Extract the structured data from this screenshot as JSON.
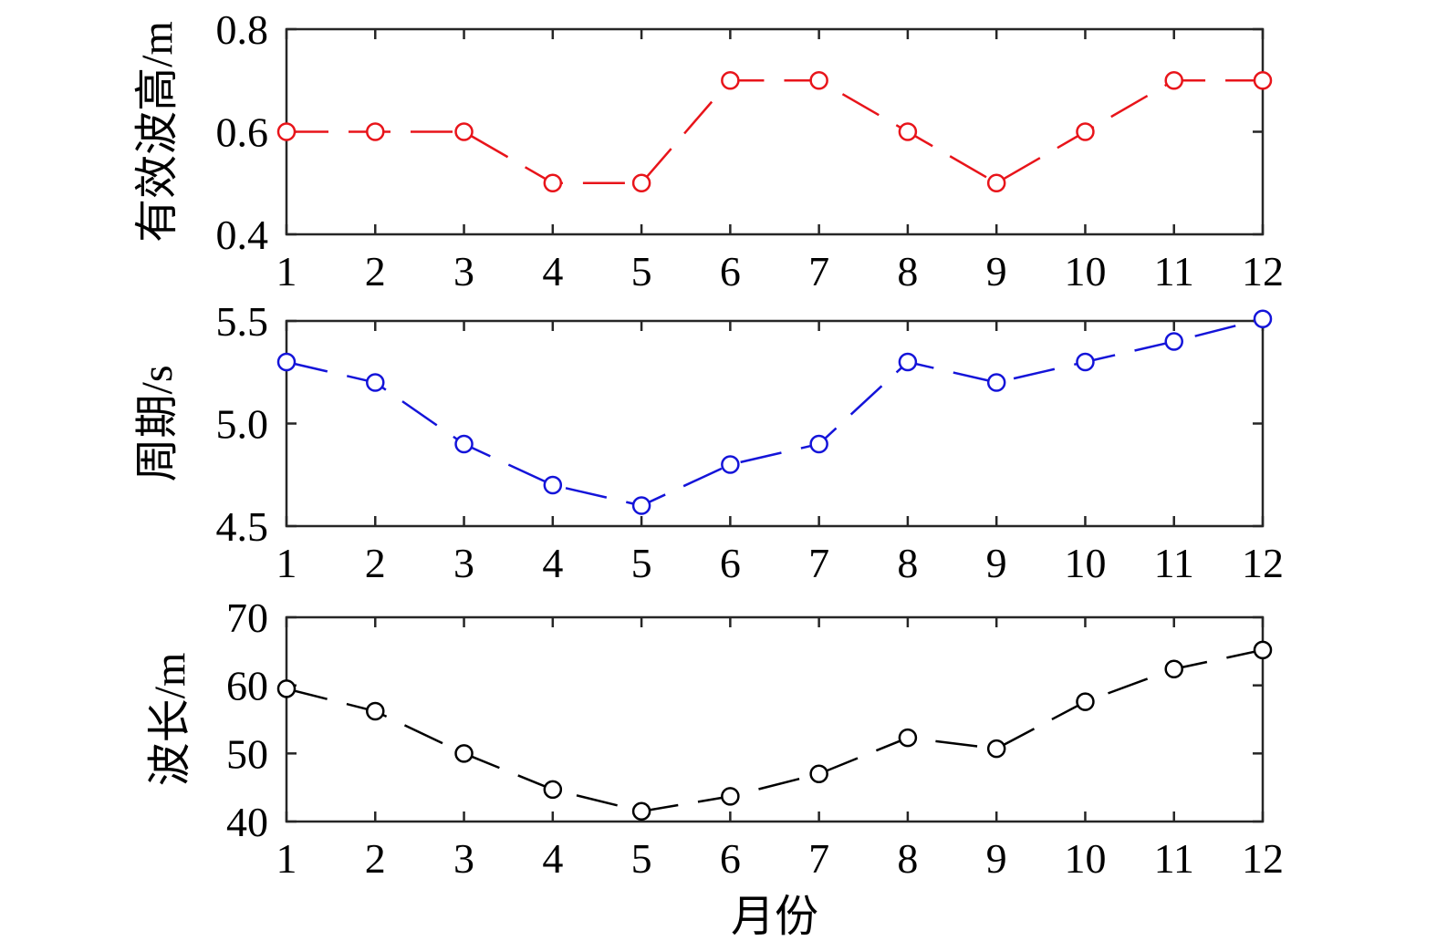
{
  "chart_data": [
    {
      "type": "line",
      "ylabel": "有效波高/m",
      "xlabel": "",
      "color": "#e8141a",
      "ylim": [
        0.4,
        0.8
      ],
      "yticks": [
        0.4,
        0.6,
        0.8
      ],
      "yticklabels": [
        "0.4",
        "0.6",
        "0.8"
      ],
      "x": [
        1,
        2,
        3,
        4,
        5,
        6,
        7,
        8,
        9,
        10,
        11,
        12
      ],
      "xticklabels": [
        "1",
        "2",
        "3",
        "4",
        "5",
        "6",
        "7",
        "8",
        "9",
        "10",
        "11",
        "12"
      ],
      "values": [
        0.6,
        0.6,
        0.6,
        0.5,
        0.5,
        0.7,
        0.7,
        0.6,
        0.5,
        0.6,
        0.7,
        0.7
      ],
      "marker": "circle",
      "line_style": "dashed"
    },
    {
      "type": "line",
      "ylabel": "周期/s",
      "xlabel": "",
      "color": "#1414d9",
      "ylim": [
        4.5,
        5.5
      ],
      "yticks": [
        4.5,
        5.0,
        5.5
      ],
      "yticklabels": [
        "4.5",
        "5.0",
        "5.5"
      ],
      "x": [
        1,
        2,
        3,
        4,
        5,
        6,
        7,
        8,
        9,
        10,
        11,
        12
      ],
      "xticklabels": [
        "1",
        "2",
        "3",
        "4",
        "5",
        "6",
        "7",
        "8",
        "9",
        "10",
        "11",
        "12"
      ],
      "values": [
        5.3,
        5.2,
        4.9,
        4.7,
        4.6,
        4.8,
        4.9,
        5.3,
        5.2,
        5.3,
        5.4,
        5.51
      ],
      "marker": "circle",
      "line_style": "dashed"
    },
    {
      "type": "line",
      "ylabel": "波长/m",
      "xlabel": "月份",
      "color": "#000000",
      "ylim": [
        40,
        70
      ],
      "yticks": [
        40,
        50,
        60,
        70
      ],
      "yticklabels": [
        "40",
        "50",
        "60",
        "70"
      ],
      "x": [
        1,
        2,
        3,
        4,
        5,
        6,
        7,
        8,
        9,
        10,
        11,
        12
      ],
      "xticklabels": [
        "1",
        "2",
        "3",
        "4",
        "5",
        "6",
        "7",
        "8",
        "9",
        "10",
        "11",
        "12"
      ],
      "values": [
        59.5,
        56.2,
        50.0,
        44.7,
        41.5,
        43.7,
        47.0,
        52.3,
        50.7,
        57.6,
        62.4,
        65.2
      ],
      "marker": "circle",
      "line_style": "dashed"
    }
  ]
}
